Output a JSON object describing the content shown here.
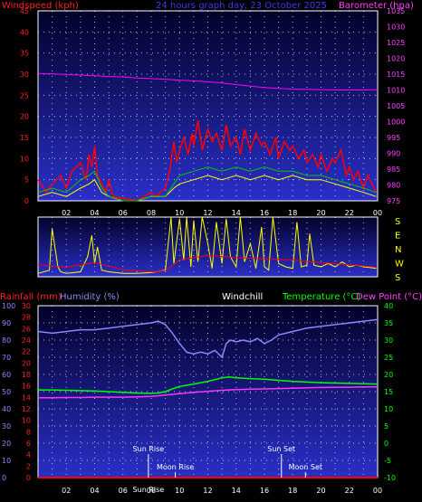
{
  "chart_data": [
    {
      "type": "line",
      "panel": "wind_pressure",
      "title": "24 hours graph day, 23 October 2025",
      "left_label": "Windspeed (kph)",
      "right_label": "Barometer (hpa)",
      "x_ticks": [
        "02",
        "04",
        "06",
        "08",
        "10",
        "12",
        "14",
        "16",
        "18",
        "20",
        "22",
        "00"
      ],
      "y_left": {
        "min": 0,
        "max": 45,
        "ticks": [
          0,
          5,
          10,
          15,
          20,
          25,
          30,
          35,
          40,
          45
        ]
      },
      "y_right": {
        "min": 975,
        "max": 1035,
        "ticks": [
          975,
          980,
          985,
          990,
          995,
          1000,
          1005,
          1010,
          1015,
          1020,
          1025,
          1030,
          1035
        ]
      },
      "series": [
        {
          "name": "",
          "color": "#ff0000",
          "x": [
            0,
            0.6,
            1,
            1.6,
            2,
            2.4,
            3,
            3.4,
            3.6,
            3.8,
            4,
            4.2,
            4.5,
            4.8,
            5,
            5.3,
            7,
            7.5,
            8,
            8.3,
            9,
            9.3,
            9.6,
            9.8,
            10,
            10.3,
            10.6,
            10.9,
            11,
            11.3,
            11.6,
            12,
            12.3,
            12.6,
            13,
            13.3,
            13.6,
            14,
            14.3,
            14.6,
            15,
            15.4,
            15.8,
            16,
            16.4,
            16.8,
            17,
            17.4,
            17.8,
            18,
            18.4,
            18.8,
            19,
            19.4,
            19.8,
            20,
            20.4,
            20.8,
            21,
            21.4,
            21.8,
            22,
            22.3,
            22.6,
            23,
            23.3,
            23.6,
            23.9
          ],
          "y": [
            5,
            2,
            4,
            6,
            3,
            7,
            9,
            5,
            11,
            8,
            13,
            6,
            4,
            2,
            5,
            1,
            0,
            1,
            2,
            1,
            3,
            7,
            14,
            9,
            12,
            15,
            11,
            16,
            13,
            19,
            12,
            17,
            14,
            16,
            12,
            18,
            13,
            15,
            11,
            17,
            12,
            16,
            13,
            14,
            11,
            15,
            10,
            14,
            12,
            13,
            10,
            12,
            9,
            11,
            8,
            11,
            7,
            10,
            9,
            12,
            6,
            8,
            5,
            7,
            3,
            6,
            4,
            2
          ]
        },
        {
          "name": "",
          "color": "#ffff00",
          "x": [
            0,
            1,
            2,
            3,
            3.6,
            4,
            4.5,
            5,
            6,
            7,
            8,
            9,
            9.6,
            10,
            11,
            12,
            13,
            14,
            15,
            16,
            17,
            18,
            19,
            20,
            21,
            22,
            23,
            23.9
          ],
          "y": [
            1,
            2,
            1,
            3,
            4,
            5,
            2,
            1,
            0,
            0,
            1,
            1,
            3,
            4,
            5,
            6,
            5,
            6,
            5,
            6,
            5,
            6,
            5,
            5,
            4,
            3,
            2,
            1
          ]
        },
        {
          "name": "",
          "color": "#00cc00",
          "x": [
            0,
            1,
            2,
            3,
            3.6,
            4,
            4.5,
            5,
            6,
            7,
            8,
            9,
            9.6,
            10,
            11,
            12,
            13,
            14,
            15,
            16,
            17,
            18,
            19,
            20,
            21,
            22,
            23,
            23.9
          ],
          "y": [
            2,
            3,
            2,
            5,
            6,
            7,
            3,
            1,
            0,
            0,
            1,
            1,
            4,
            6,
            7,
            8,
            7,
            8,
            7,
            8,
            7,
            7,
            6,
            6,
            5,
            4,
            3,
            2
          ]
        },
        {
          "name": "",
          "color": "#ff00ff",
          "axis": "right",
          "x": [
            0,
            1,
            2,
            3,
            4,
            5,
            6,
            7,
            8,
            9,
            10,
            11,
            12,
            13,
            14,
            15,
            16,
            17,
            18,
            19,
            20,
            21,
            22,
            23,
            24
          ],
          "y": [
            1015.2,
            1015.1,
            1014.9,
            1014.7,
            1014.5,
            1014.3,
            1014.1,
            1013.8,
            1013.6,
            1013.4,
            1013.1,
            1012.9,
            1012.6,
            1012.2,
            1011.7,
            1011.2,
            1010.8,
            1010.5,
            1010.3,
            1010.2,
            1010.1,
            1010.0,
            1010.0,
            1010.0,
            1010.1
          ]
        }
      ]
    },
    {
      "type": "line",
      "panel": "wind_direction",
      "right_labels": [
        "S",
        "E",
        "N",
        "W",
        "S"
      ],
      "series": [
        {
          "name": "",
          "color": "#ffff00",
          "x": [
            0,
            0.8,
            1,
            1.4,
            1.6,
            2,
            3,
            3.5,
            3.8,
            4,
            4.2,
            4.5,
            5,
            6,
            7,
            8,
            9,
            9.4,
            9.6,
            10,
            10.3,
            10.5,
            10.8,
            11,
            11.3,
            11.6,
            12,
            12.3,
            12.6,
            13,
            13.3,
            13.6,
            14,
            14.3,
            14.6,
            15,
            15.4,
            15.8,
            16,
            16.3,
            16.6,
            17,
            17.5,
            18,
            18.3,
            18.6,
            19,
            19.2,
            19.5,
            20,
            20.5,
            21,
            21.5,
            22,
            22.5,
            23,
            23.5,
            23.9
          ],
          "y": [
            20,
            40,
            290,
            60,
            30,
            20,
            30,
            120,
            250,
            80,
            180,
            40,
            30,
            20,
            20,
            25,
            40,
            360,
            80,
            350,
            100,
            360,
            60,
            340,
            90,
            360,
            200,
            50,
            330,
            80,
            350,
            120,
            60,
            360,
            90,
            200,
            50,
            300,
            60,
            40,
            360,
            80,
            60,
            50,
            330,
            60,
            70,
            260,
            70,
            60,
            80,
            60,
            90,
            60,
            70,
            60,
            55,
            50
          ]
        },
        {
          "name": "",
          "color": "#ff0000",
          "x": [
            0,
            2,
            4,
            6,
            8,
            9,
            10,
            12,
            14,
            16,
            18,
            20,
            22,
            23.9
          ],
          "y": [
            10,
            8,
            12,
            6,
            4,
            5,
            14,
            18,
            16,
            15,
            14,
            12,
            10,
            8
          ]
        }
      ]
    },
    {
      "type": "line",
      "panel": "temperature_humidity",
      "labels": [
        "Rainfall (mm)",
        "Humidity (%)",
        "Windchill",
        "Temperature (°C)",
        "Dew Point (°C)"
      ],
      "y_humidity": {
        "min": 0,
        "max": 100,
        "ticks": [
          0,
          10,
          20,
          30,
          40,
          50,
          60,
          70,
          80,
          90,
          100
        ]
      },
      "y_rain": {
        "min": 0,
        "max": 30,
        "ticks": [
          0,
          2,
          4,
          6,
          8,
          10,
          12,
          14,
          16,
          18,
          20,
          22,
          24,
          26,
          28,
          30
        ]
      },
      "y_temp": {
        "min": -10,
        "max": 40,
        "ticks": [
          -10,
          -5,
          0,
          5,
          10,
          15,
          20,
          25,
          30,
          35,
          40
        ]
      },
      "annotations": [
        "Sun Rise",
        "Moon Rise",
        "Sun Set",
        "Moon Set",
        "Sun Rise"
      ],
      "series": [
        {
          "name": "Humidity (%)",
          "color": "#8888ff",
          "axis": "humidity",
          "x": [
            0,
            1,
            2,
            3,
            4,
            5,
            6,
            7,
            8,
            8.5,
            9,
            9.5,
            10,
            10.5,
            11,
            11.5,
            12,
            12.5,
            13,
            13.3,
            13.6,
            14,
            14.5,
            15,
            15.5,
            16,
            16.5,
            17,
            18,
            19,
            20,
            21,
            22,
            23,
            24
          ],
          "y": [
            85,
            84,
            85,
            86,
            86,
            87,
            88,
            89,
            90,
            91,
            89,
            84,
            78,
            73,
            72,
            73,
            72,
            74,
            70,
            78,
            80,
            79,
            80,
            79,
            81,
            78,
            80,
            83,
            85,
            87,
            88,
            89,
            90,
            91,
            92
          ]
        },
        {
          "name": "Temperature (°C)",
          "color": "#00ff00",
          "axis": "temp",
          "x": [
            0,
            1,
            2,
            3,
            4,
            5,
            6,
            7,
            8,
            8.5,
            9,
            9.5,
            10,
            11,
            12,
            12.5,
            13,
            13.5,
            14,
            15,
            16,
            17,
            18,
            19,
            20,
            21,
            22,
            23,
            24
          ],
          "y": [
            15.5,
            15.5,
            15.4,
            15.3,
            15.2,
            15.0,
            14.8,
            14.6,
            14.5,
            14.6,
            15.0,
            15.8,
            16.5,
            17.2,
            18.0,
            18.5,
            19.0,
            19.3,
            19.0,
            18.8,
            18.6,
            18.3,
            18.0,
            17.8,
            17.6,
            17.5,
            17.4,
            17.3,
            17.2
          ]
        },
        {
          "name": "Dew Point (°C)",
          "color": "#ff33ff",
          "axis": "temp",
          "x": [
            0,
            1,
            2,
            3,
            4,
            5,
            6,
            7,
            8,
            9,
            10,
            11,
            12,
            13,
            14,
            15,
            16,
            17,
            18,
            19,
            20,
            21,
            22,
            23,
            24
          ],
          "y": [
            13.2,
            13.2,
            13.3,
            13.3,
            13.4,
            13.4,
            13.4,
            13.5,
            13.6,
            14.0,
            14.4,
            14.8,
            15.1,
            15.4,
            15.6,
            15.7,
            15.8,
            15.9,
            16.0,
            16.1,
            16.2,
            16.3,
            16.3,
            16.4,
            16.4
          ]
        },
        {
          "name": "Rainfall (mm)",
          "color": "#ff0000",
          "axis": "rain",
          "x": [
            0,
            24
          ],
          "y": [
            0,
            0
          ]
        }
      ]
    }
  ]
}
